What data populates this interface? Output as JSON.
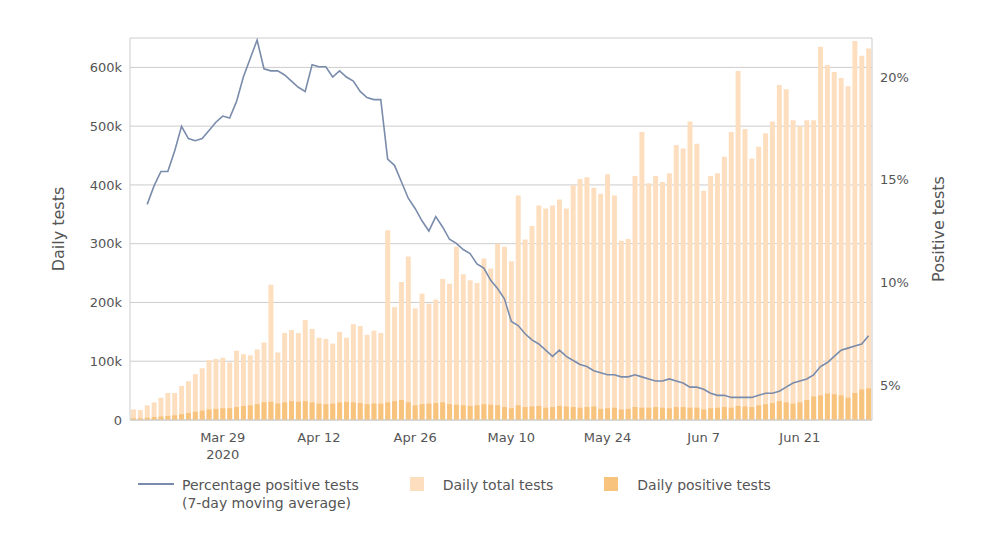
{
  "chart_data": {
    "type": "bar",
    "ylabel": "Daily tests",
    "y2label": "Positive tests",
    "grid": true,
    "legend": "bottom",
    "stacked": false,
    "categories": [
      null,
      null,
      null,
      null,
      null,
      null,
      null,
      null,
      null,
      null,
      null,
      null,
      null,
      "Mar 29\n2020",
      null,
      null,
      null,
      null,
      null,
      null,
      null,
      null,
      null,
      null,
      null,
      null,
      null,
      "Apr 12",
      null,
      null,
      null,
      null,
      null,
      null,
      null,
      null,
      null,
      null,
      null,
      null,
      null,
      "Apr 26",
      null,
      null,
      null,
      null,
      null,
      null,
      null,
      null,
      null,
      null,
      null,
      null,
      null,
      "May 10",
      null,
      null,
      null,
      null,
      null,
      null,
      null,
      null,
      null,
      null,
      null,
      null,
      null,
      "May 24",
      null,
      null,
      null,
      null,
      null,
      null,
      null,
      null,
      null,
      null,
      null,
      null,
      null,
      "Jun 7",
      null,
      null,
      null,
      null,
      null,
      null,
      null,
      null,
      null,
      null,
      null,
      null,
      null,
      "Jun 21",
      null,
      null,
      null,
      null,
      null,
      null,
      null,
      null,
      null,
      null
    ],
    "ylim": [
      0,
      650000
    ],
    "yticks": [
      0,
      {
        "value": 100000,
        "label": "100k"
      },
      {
        "value": 200000,
        "label": "200k"
      },
      {
        "value": 300000,
        "label": "300k"
      },
      {
        "value": 400000,
        "label": "400k"
      },
      {
        "value": 500000,
        "label": "500k"
      },
      {
        "value": 600000,
        "label": "600k"
      }
    ],
    "y2lim": [
      3.3,
      21.9
    ],
    "y2ticks": [
      {
        "value": 5,
        "label": "5%"
      },
      {
        "value": 10,
        "label": "10%"
      },
      {
        "value": 15,
        "label": "15%"
      },
      {
        "value": 20,
        "label": "20%"
      }
    ],
    "series": [
      {
        "name": "Percentage positive tests\n(7-day moving average)",
        "type": "line",
        "axis": "y2",
        "color": "#7a8cab",
        "values": [
          null,
          null,
          13.8,
          14.7,
          15.4,
          15.4,
          16.4,
          17.6,
          17.0,
          16.9,
          17.0,
          17.4,
          17.8,
          18.1,
          18.0,
          18.8,
          20.0,
          20.9,
          21.8,
          20.4,
          20.3,
          20.3,
          20.1,
          19.8,
          19.5,
          19.3,
          20.6,
          20.5,
          20.5,
          20.0,
          20.3,
          20.0,
          19.8,
          19.3,
          19.0,
          18.9,
          18.9,
          16.0,
          15.7,
          14.9,
          14.1,
          13.6,
          13.0,
          12.5,
          13.2,
          12.7,
          12.1,
          11.9,
          11.6,
          11.4,
          10.9,
          10.7,
          10.1,
          9.7,
          9.2,
          8.1,
          7.9,
          7.5,
          7.2,
          7.0,
          6.7,
          6.4,
          6.7,
          6.4,
          6.2,
          6.0,
          5.9,
          5.7,
          5.6,
          5.5,
          5.5,
          5.4,
          5.4,
          5.5,
          5.4,
          5.3,
          5.2,
          5.2,
          5.3,
          5.2,
          5.1,
          4.9,
          4.9,
          4.8,
          4.6,
          4.5,
          4.5,
          4.4,
          4.4,
          4.4,
          4.4,
          4.5,
          4.6,
          4.6,
          4.7,
          4.9,
          5.1,
          5.2,
          5.3,
          5.5,
          5.9,
          6.1,
          6.4,
          6.7,
          6.8,
          6.9,
          7.0,
          7.4
        ]
      },
      {
        "name": "Daily total tests",
        "type": "bar",
        "color": "#fddfc0",
        "values": [
          18000,
          17000,
          25000,
          30000,
          38000,
          46000,
          46000,
          58000,
          66000,
          78000,
          88000,
          102000,
          104000,
          106000,
          98000,
          118000,
          112000,
          110000,
          120000,
          132000,
          230000,
          115000,
          148000,
          153000,
          148000,
          170000,
          155000,
          140000,
          138000,
          130000,
          150000,
          140000,
          163000,
          160000,
          145000,
          152000,
          148000,
          323000,
          192000,
          235000,
          278000,
          190000,
          215000,
          198000,
          205000,
          240000,
          232000,
          295000,
          248000,
          238000,
          233000,
          275000,
          258000,
          300000,
          295000,
          270000,
          382000,
          307000,
          330000,
          365000,
          360000,
          365000,
          375000,
          360000,
          400000,
          410000,
          413000,
          395000,
          385000,
          418000,
          382000,
          305000,
          308000,
          415000,
          490000,
          403000,
          415000,
          405000,
          420000,
          468000,
          462000,
          508000,
          470000,
          390000,
          415000,
          420000,
          448000,
          490000,
          594000,
          495000,
          445000,
          465000,
          488000,
          508000,
          570000,
          563000,
          510000,
          500000,
          510000,
          510000,
          635000,
          604000,
          592000,
          582000,
          568000,
          645000,
          620000,
          632000
        ]
      },
      {
        "name": "Daily positive tests",
        "type": "bar",
        "color": "#f8c37c",
        "values": [
          3000,
          3000,
          4000,
          5000,
          6000,
          7000,
          8000,
          10000,
          12000,
          14000,
          16000,
          18000,
          19000,
          20000,
          20000,
          22000,
          24000,
          25000,
          27000,
          30000,
          31000,
          28000,
          30000,
          32000,
          31000,
          32000,
          30000,
          28000,
          27000,
          28000,
          30000,
          31000,
          30000,
          29000,
          27000,
          28000,
          28000,
          30000,
          32000,
          34000,
          30000,
          25000,
          27000,
          28000,
          29000,
          30000,
          27000,
          26000,
          25000,
          24000,
          25000,
          27000,
          26000,
          25000,
          22000,
          20000,
          25000,
          22000,
          23000,
          24000,
          21000,
          22000,
          24000,
          23000,
          22000,
          21000,
          22000,
          23000,
          19000,
          20000,
          21000,
          18000,
          19000,
          22000,
          21000,
          21000,
          22000,
          21000,
          20000,
          22000,
          22000,
          21000,
          21000,
          18000,
          20000,
          21000,
          22000,
          21000,
          24000,
          23000,
          22000,
          25000,
          27000,
          29000,
          32000,
          30000,
          28000,
          30000,
          34000,
          40000,
          42000,
          45000,
          44000,
          42000,
          38000,
          46000,
          52000,
          54000
        ]
      }
    ]
  }
}
